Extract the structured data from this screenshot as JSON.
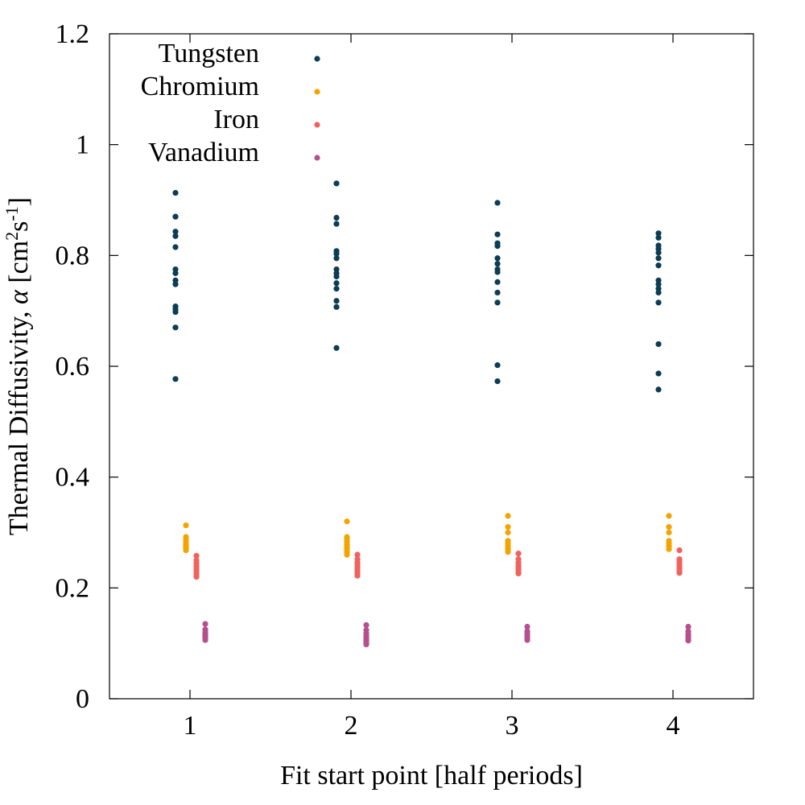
{
  "chart_data": {
    "type": "scatter",
    "title": "",
    "xlabel": "Fit start point [half periods]",
    "ylabel": {
      "prefix": "Thermal Diffusivity, ",
      "symbol": "α",
      "unit_open": " [cm",
      "sup1": "2",
      "unit_mid": "s",
      "sup2": "-1",
      "unit_close": "]"
    },
    "xlim": [
      0.5,
      4.5
    ],
    "ylim": [
      0,
      1.2
    ],
    "xticks": [
      "1",
      "2",
      "3",
      "4"
    ],
    "yticks": [
      "0",
      "0.2",
      "0.4",
      "0.6",
      "0.8",
      "1",
      "1.2"
    ],
    "grid": false,
    "legend_position": "top-left",
    "series": [
      {
        "name": "Tungsten",
        "color": "#0b3d55",
        "offset": -0.09,
        "points": [
          {
            "x": 1,
            "values": [
              0.913,
              0.87,
              0.843,
              0.835,
              0.815,
              0.775,
              0.768,
              0.755,
              0.748,
              0.708,
              0.703,
              0.698,
              0.67,
              0.577
            ]
          },
          {
            "x": 2,
            "values": [
              0.93,
              0.868,
              0.857,
              0.808,
              0.803,
              0.795,
              0.775,
              0.768,
              0.762,
              0.75,
              0.74,
              0.718,
              0.707,
              0.633
            ]
          },
          {
            "x": 3,
            "values": [
              0.895,
              0.838,
              0.822,
              0.817,
              0.795,
              0.785,
              0.775,
              0.77,
              0.752,
              0.733,
              0.715,
              0.602,
              0.573
            ]
          },
          {
            "x": 4,
            "values": [
              0.84,
              0.832,
              0.818,
              0.812,
              0.805,
              0.795,
              0.782,
              0.755,
              0.748,
              0.74,
              0.733,
              0.715,
              0.64,
              0.587,
              0.558
            ]
          }
        ]
      },
      {
        "name": "Chromium",
        "color": "#f5a300",
        "offset": -0.025,
        "points": [
          {
            "x": 1,
            "values": [
              0.313,
              0.292,
              0.287,
              0.282,
              0.278,
              0.275,
              0.272,
              0.268
            ]
          },
          {
            "x": 2,
            "values": [
              0.32,
              0.292,
              0.288,
              0.283,
              0.278,
              0.274,
              0.27,
              0.265,
              0.26
            ]
          },
          {
            "x": 3,
            "values": [
              0.33,
              0.31,
              0.3,
              0.285,
              0.28,
              0.275,
              0.27,
              0.265
            ]
          },
          {
            "x": 4,
            "values": [
              0.33,
              0.31,
              0.3,
              0.285,
              0.28,
              0.275,
              0.27
            ]
          }
        ]
      },
      {
        "name": "Iron",
        "color": "#f0625c",
        "offset": 0.04,
        "points": [
          {
            "x": 1,
            "values": [
              0.258,
              0.25,
              0.245,
              0.24,
              0.236,
              0.232,
              0.228,
              0.224,
              0.22
            ]
          },
          {
            "x": 2,
            "values": [
              0.26,
              0.252,
              0.246,
              0.242,
              0.238,
              0.234,
              0.23,
              0.226,
              0.222
            ]
          },
          {
            "x": 3,
            "values": [
              0.262,
              0.252,
              0.246,
              0.241,
              0.237,
              0.233,
              0.229,
              0.226
            ]
          },
          {
            "x": 4,
            "values": [
              0.268,
              0.252,
              0.248,
              0.243,
              0.239,
              0.235,
              0.231,
              0.227
            ]
          }
        ]
      },
      {
        "name": "Vanadium",
        "color": "#b5508e",
        "offset": 0.095,
        "points": [
          {
            "x": 1,
            "values": [
              0.135,
              0.125,
              0.12,
              0.116,
              0.113,
              0.11,
              0.106
            ]
          },
          {
            "x": 2,
            "values": [
              0.133,
              0.124,
              0.118,
              0.113,
              0.109,
              0.105,
              0.101,
              0.098
            ]
          },
          {
            "x": 3,
            "values": [
              0.13,
              0.122,
              0.118,
              0.114,
              0.11,
              0.106
            ]
          },
          {
            "x": 4,
            "values": [
              0.13,
              0.122,
              0.117,
              0.113,
              0.109,
              0.105
            ]
          }
        ]
      }
    ]
  }
}
